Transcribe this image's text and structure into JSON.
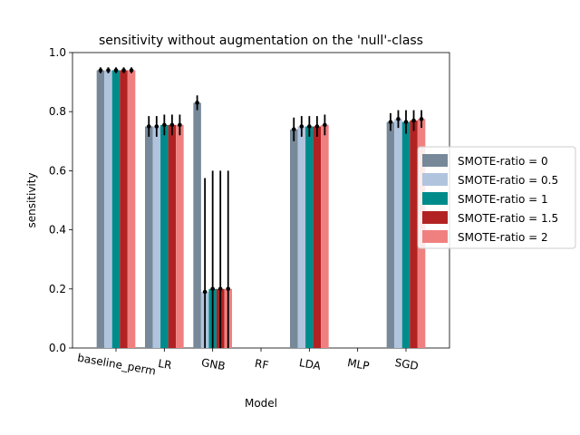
{
  "chart_data": {
    "type": "bar",
    "title": "sensitivity without augmentation on the 'null'-class",
    "xlabel": "Model",
    "ylabel": "sensitivity",
    "ylim": [
      0,
      1.0
    ],
    "yticks": [
      "0.0",
      "0.2",
      "0.4",
      "0.6",
      "0.8",
      "1.0"
    ],
    "ytick_values": [
      0,
      0.2,
      0.4,
      0.6,
      0.8,
      1.0
    ],
    "categories": [
      "baseline_perm",
      "LR",
      "GNB",
      "RF",
      "LDA",
      "MLP",
      "SGD"
    ],
    "legend_position": "center-right",
    "grid": false,
    "series": [
      {
        "name": "SMOTE-ratio = 0",
        "color": "#778899",
        "values": [
          0.94,
          0.75,
          0.83,
          null,
          0.74,
          null,
          0.765
        ],
        "errors": [
          0.01,
          0.035,
          0.025,
          null,
          0.04,
          null,
          0.03
        ]
      },
      {
        "name": "SMOTE-ratio = 0.5",
        "color": "#b0c4de",
        "values": [
          0.94,
          0.75,
          0.19,
          null,
          0.75,
          null,
          0.775
        ],
        "errors": [
          0.01,
          0.035,
          0.385,
          null,
          0.035,
          null,
          0.03
        ]
      },
      {
        "name": "SMOTE-ratio = 1",
        "color": "#008b8b",
        "values": [
          0.94,
          0.755,
          0.2,
          null,
          0.75,
          null,
          0.765
        ],
        "errors": [
          0.01,
          0.035,
          0.4,
          null,
          0.035,
          null,
          0.04
        ]
      },
      {
        "name": "SMOTE-ratio = 1.5",
        "color": "#b22222",
        "values": [
          0.94,
          0.755,
          0.2,
          null,
          0.75,
          null,
          0.77
        ],
        "errors": [
          0.01,
          0.035,
          0.4,
          null,
          0.035,
          null,
          0.035
        ]
      },
      {
        "name": "SMOTE-ratio = 2",
        "color": "#f08080",
        "values": [
          0.94,
          0.755,
          0.2,
          null,
          0.755,
          null,
          0.775
        ],
        "errors": [
          0.01,
          0.035,
          0.4,
          null,
          0.035,
          null,
          0.03
        ]
      }
    ]
  }
}
